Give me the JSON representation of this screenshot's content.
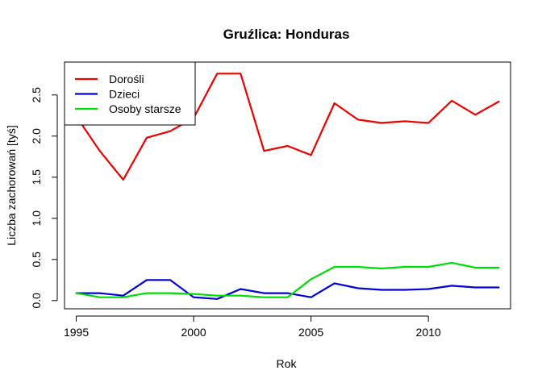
{
  "chart_data": {
    "type": "line",
    "title": "Gruźlica: Honduras",
    "xlabel": "Rok",
    "ylabel": "Liczba zachorowań [tyś]",
    "xlim": [
      1994.5,
      2013.5
    ],
    "ylim": [
      -0.1,
      2.9
    ],
    "x_ticks": [
      1995,
      2000,
      2005,
      2010
    ],
    "y_ticks": [
      0.0,
      0.5,
      1.0,
      1.5,
      2.0,
      2.5
    ],
    "y_tick_labels": [
      "0.0",
      "0.5",
      "1.0",
      "1.5",
      "2.0",
      "2.5"
    ],
    "x": [
      1995,
      1996,
      1997,
      1998,
      1999,
      2000,
      2001,
      2002,
      2003,
      2004,
      2005,
      2006,
      2007,
      2008,
      2009,
      2010,
      2011,
      2012,
      2013
    ],
    "series": [
      {
        "name": "Dorośli",
        "color": "#ee0000",
        "values": [
          2.24,
          1.82,
          1.47,
          1.98,
          2.06,
          2.22,
          2.76,
          2.76,
          1.82,
          1.88,
          1.77,
          2.4,
          2.2,
          2.16,
          2.18,
          2.16,
          2.43,
          2.26,
          2.42
        ]
      },
      {
        "name": "Dzieci",
        "color": "#0000dd",
        "values": [
          0.09,
          0.09,
          0.06,
          0.25,
          0.25,
          0.04,
          0.02,
          0.14,
          0.09,
          0.09,
          0.04,
          0.21,
          0.15,
          0.13,
          0.13,
          0.14,
          0.18,
          0.16,
          0.16
        ]
      },
      {
        "name": "Osoby starsze",
        "color": "#00dd00",
        "values": [
          0.09,
          0.04,
          0.04,
          0.09,
          0.09,
          0.08,
          0.06,
          0.06,
          0.04,
          0.04,
          0.26,
          0.41,
          0.41,
          0.39,
          0.41,
          0.41,
          0.46,
          0.4,
          0.4
        ]
      }
    ],
    "legend": {
      "placement": "top-left",
      "entries": [
        "Dorośli",
        "Dzieci",
        "Osoby starsze"
      ]
    },
    "grid": false
  }
}
